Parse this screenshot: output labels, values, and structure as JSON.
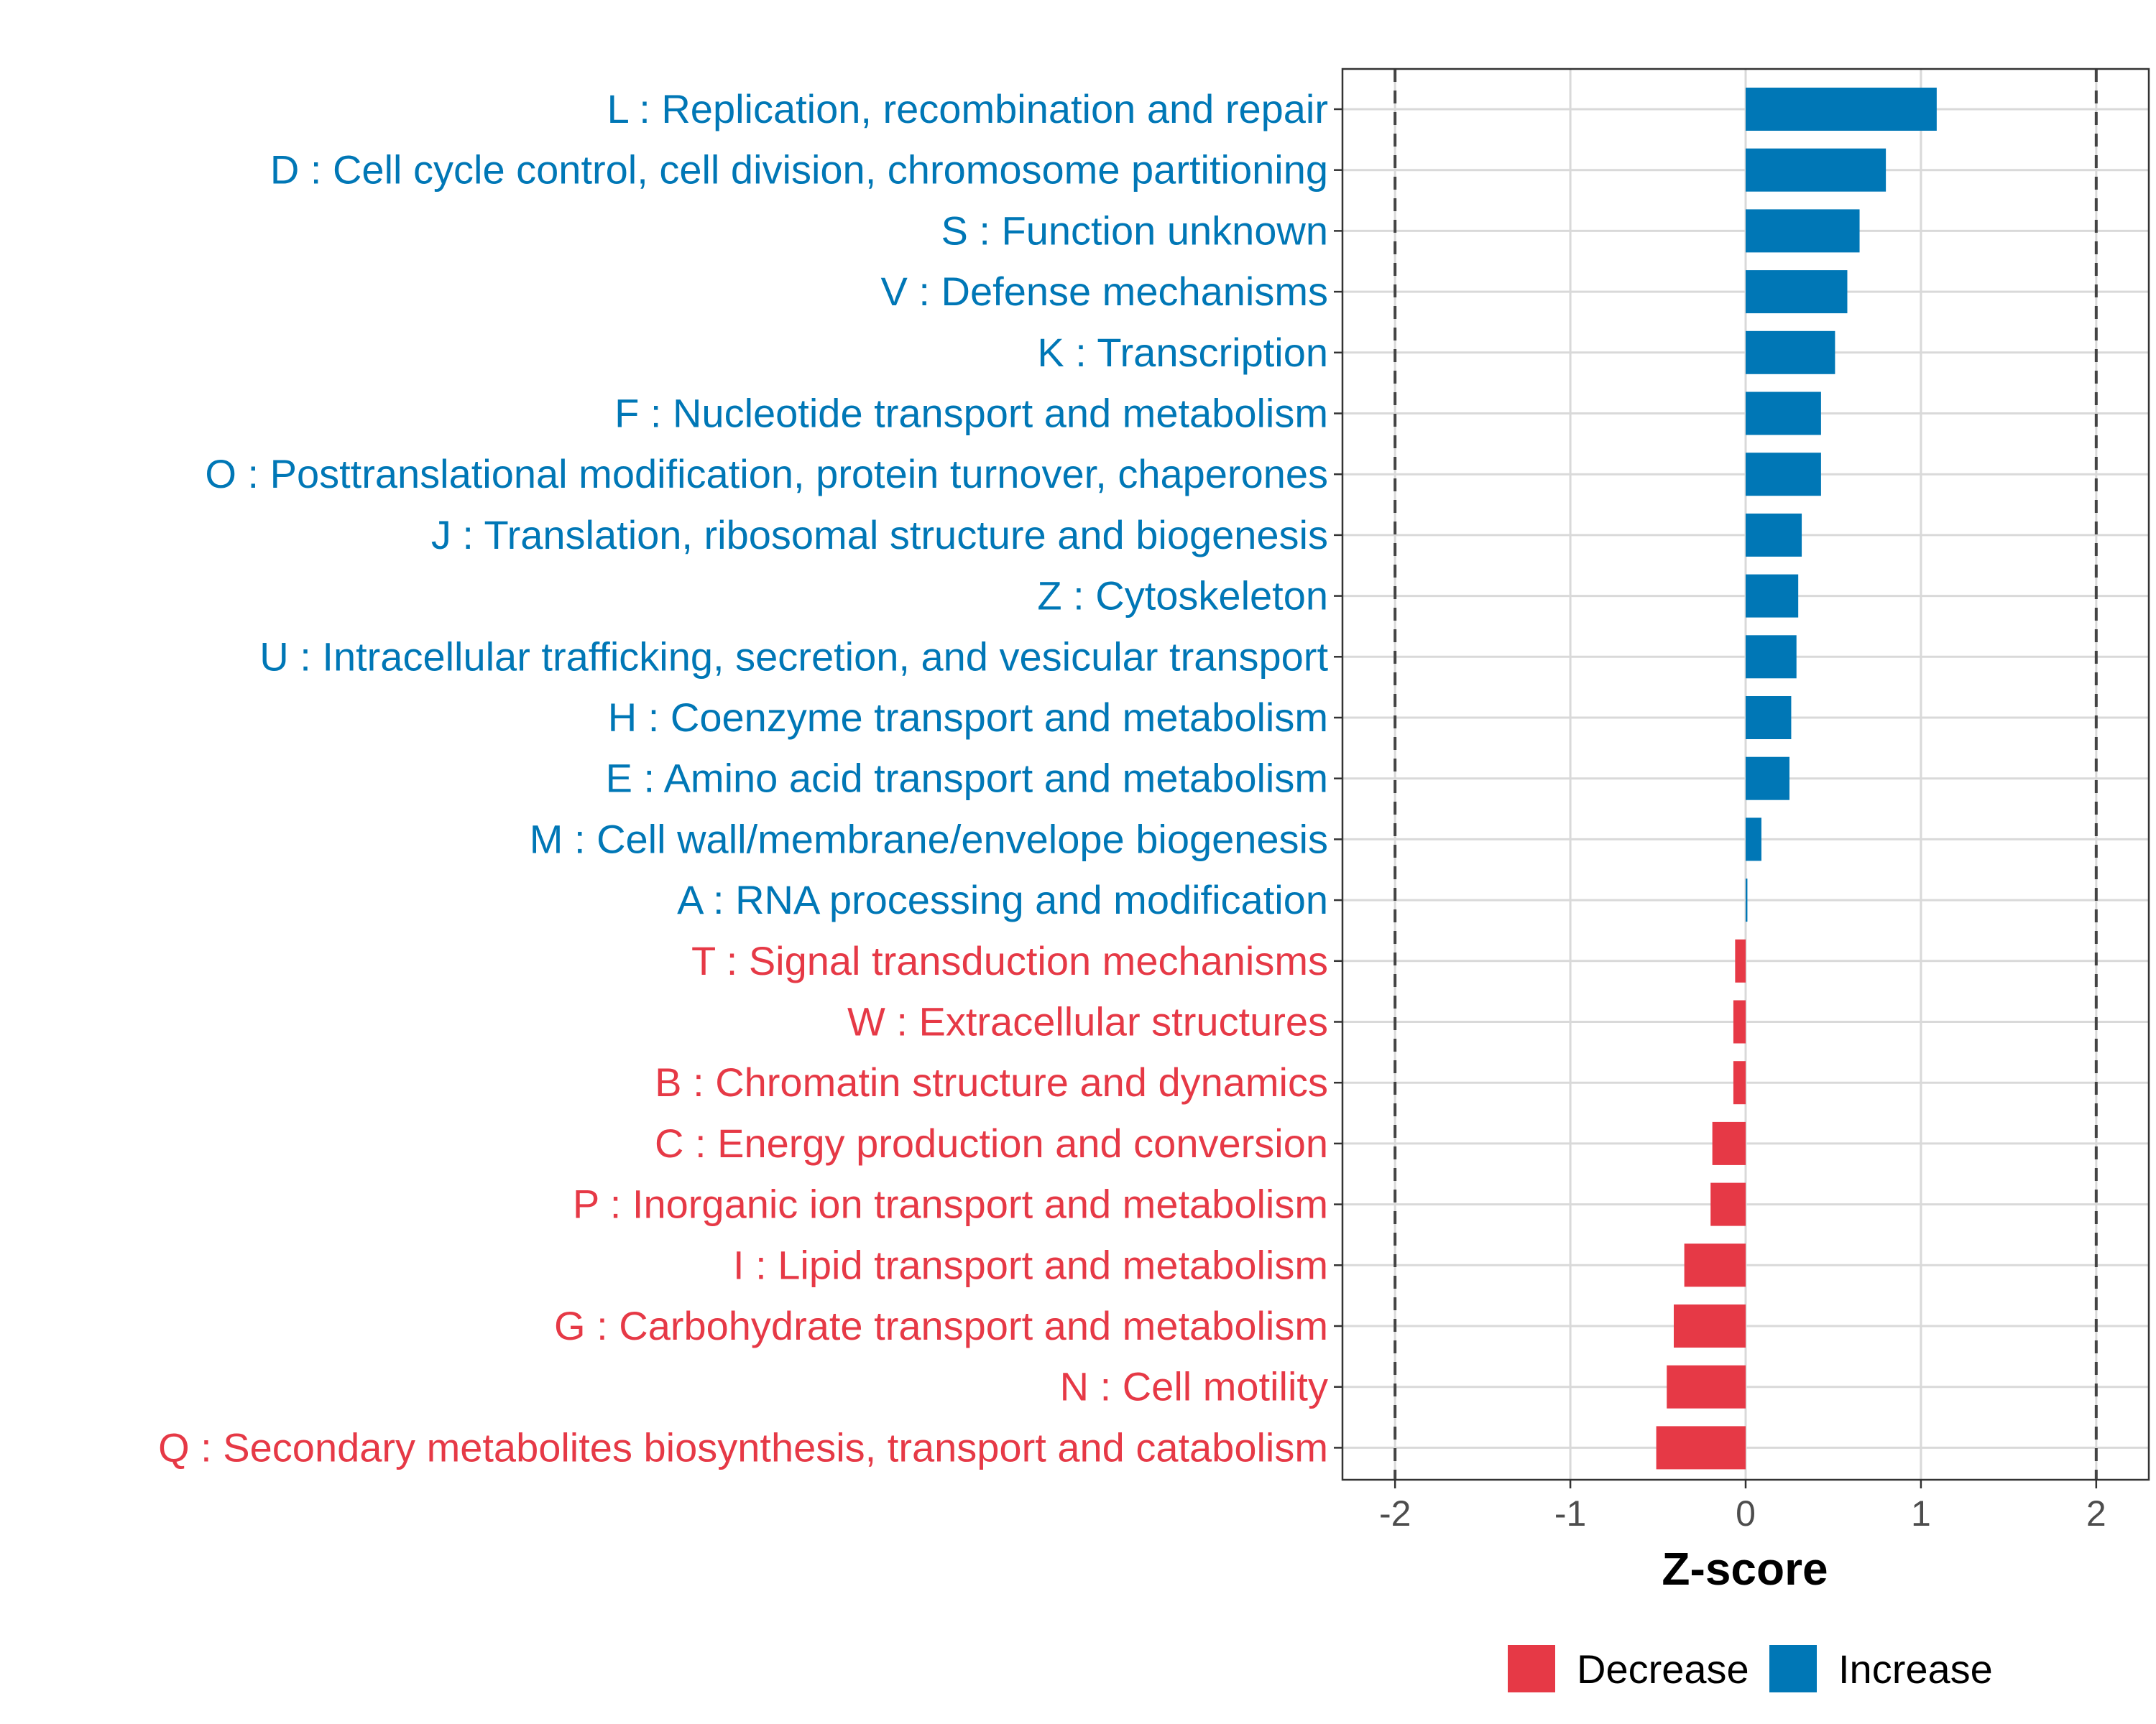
{
  "chart_data": {
    "type": "bar",
    "orientation": "horizontal",
    "xlabel": "Z-score",
    "ylabel": "",
    "xlim": [
      -2.3,
      2.3
    ],
    "xticks": [
      -2,
      -1,
      0,
      1,
      2
    ],
    "xtick_labels": [
      "-2",
      "-1",
      "0",
      "1",
      "2"
    ],
    "reference_lines": [
      -2,
      2
    ],
    "grid": true,
    "colors": {
      "Decrease": "#e63946",
      "Increase": "#0077b6"
    },
    "legend": {
      "position": "bottom",
      "entries": [
        "Decrease",
        "Increase"
      ]
    },
    "categories": [
      "L : Replication, recombination and repair",
      "D : Cell cycle control, cell division, chromosome partitioning",
      "S : Function unknown",
      "V : Defense mechanisms",
      "K : Transcription",
      "F : Nucleotide transport and metabolism",
      "O : Posttranslational modification, protein turnover, chaperones",
      "J : Translation, ribosomal structure and biogenesis",
      "Z : Cytoskeleton",
      "U : Intracellular trafficking, secretion, and vesicular transport",
      "H : Coenzyme transport and metabolism",
      "E : Amino acid transport and metabolism",
      "M : Cell wall/membrane/envelope biogenesis",
      "A : RNA processing and modification",
      "T : Signal transduction mechanisms",
      "W : Extracellular structures",
      "B : Chromatin structure and dynamics",
      "C : Energy production and conversion",
      "P : Inorganic ion transport and metabolism",
      "I : Lipid transport and metabolism",
      "G : Carbohydrate transport and metabolism",
      "N : Cell motility",
      "Q : Secondary metabolites biosynthesis, transport and catabolism"
    ],
    "values": [
      1.09,
      0.8,
      0.65,
      0.58,
      0.51,
      0.43,
      0.43,
      0.32,
      0.3,
      0.29,
      0.26,
      0.25,
      0.09,
      0.01,
      -0.06,
      -0.07,
      -0.07,
      -0.19,
      -0.2,
      -0.35,
      -0.41,
      -0.45,
      -0.51
    ],
    "groups": [
      "Increase",
      "Increase",
      "Increase",
      "Increase",
      "Increase",
      "Increase",
      "Increase",
      "Increase",
      "Increase",
      "Increase",
      "Increase",
      "Increase",
      "Increase",
      "Increase",
      "Decrease",
      "Decrease",
      "Decrease",
      "Decrease",
      "Decrease",
      "Decrease",
      "Decrease",
      "Decrease",
      "Decrease"
    ]
  }
}
